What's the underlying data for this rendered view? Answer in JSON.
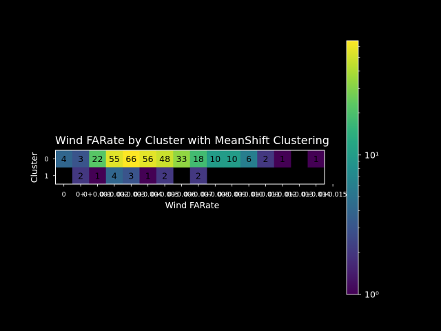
{
  "chart_data": {
    "type": "heatmap",
    "title": "Wind FARate by Cluster with MeanShift Clustering",
    "xlabel": "Wind FARate",
    "ylabel": "Cluster",
    "rows": [
      "0",
      "1"
    ],
    "columns": [
      "0",
      "0+",
      "0+0.001",
      "0+0.002",
      "0+0.003",
      "0+0.004",
      "0+0.005",
      "0+0.006",
      "0+0.007",
      "0+0.008",
      "0+0.009",
      "0+0.010",
      "0+0.011",
      "0+0.012",
      "0+0.013",
      "0+0.014",
      "0+0.015"
    ],
    "values": [
      [
        4,
        3,
        22,
        55,
        66,
        56,
        48,
        33,
        18,
        10,
        10,
        6,
        2,
        1,
        null,
        1
      ],
      [
        null,
        2,
        1,
        4,
        3,
        1,
        2,
        null,
        2,
        null,
        null,
        null,
        null,
        null,
        null,
        null
      ]
    ],
    "colorbar": {
      "scale": "log",
      "range": [
        1,
        66
      ],
      "tick_labels": [
        "10⁰",
        "10¹"
      ],
      "colormap": "viridis"
    },
    "grid": false
  }
}
